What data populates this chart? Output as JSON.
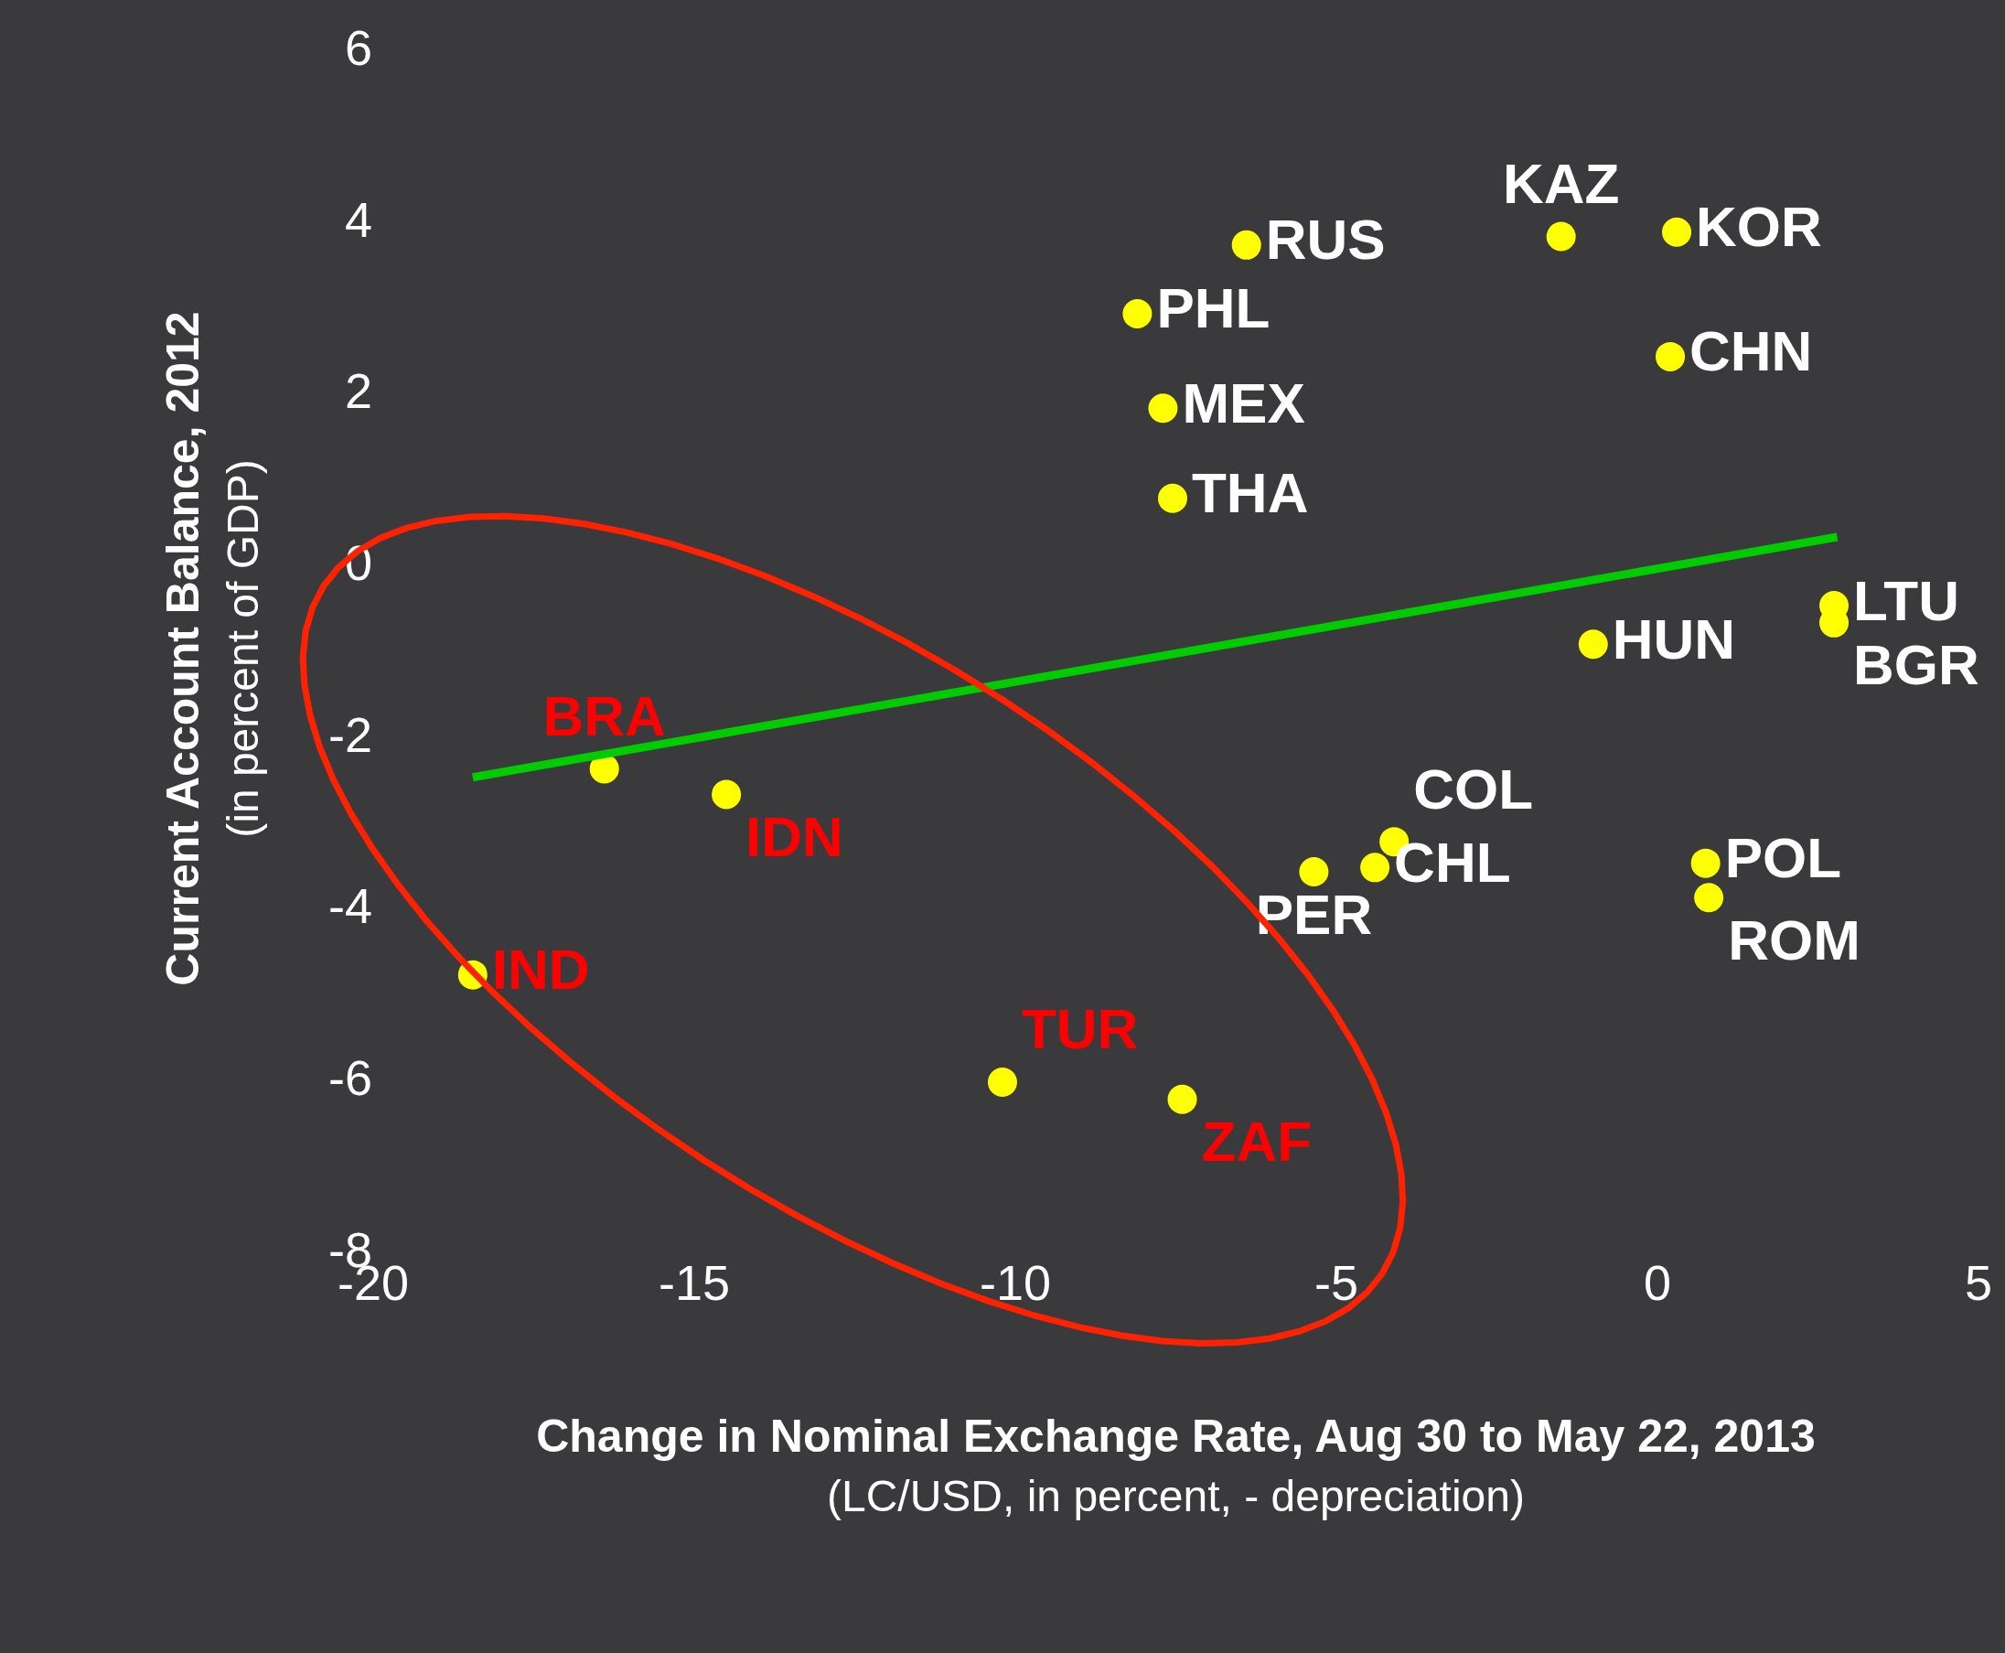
{
  "chart_data": {
    "type": "scatter",
    "xlabel": "Change in Nominal Exchange Rate, Aug 30 to May 22, 2013\n(LC/USD, in percent, - depreciation)",
    "ylabel": "Current Account Balance, 2012\n(in percent of GDP)",
    "xlim": [
      -20,
      5
    ],
    "xticks": [
      -20,
      -15,
      -10,
      -5,
      0,
      5
    ],
    "ylim": [
      -8,
      6
    ],
    "yticks": [
      -8,
      -6,
      -4,
      -2,
      0,
      2,
      4,
      6
    ],
    "legend": false,
    "marker": "circle",
    "series": [
      {
        "name": "RUS",
        "color": "#ffff00",
        "x": [
          -6.4
        ],
        "values": [
          3.7
        ]
      },
      {
        "name": "KAZ",
        "color": "#ffff00",
        "x": [
          -1.5
        ],
        "values": [
          3.8
        ]
      },
      {
        "name": "KOR",
        "color": "#ffff00",
        "x": [
          0.3
        ],
        "values": [
          3.85
        ]
      },
      {
        "name": "PHL",
        "color": "#ffff00",
        "x": [
          -8.1
        ],
        "values": [
          2.9
        ]
      },
      {
        "name": "CHN",
        "color": "#ffff00",
        "x": [
          0.2
        ],
        "values": [
          2.4
        ]
      },
      {
        "name": "MEX",
        "color": "#ffff00",
        "x": [
          -7.7
        ],
        "values": [
          1.8
        ]
      },
      {
        "name": "THA",
        "color": "#ffff00",
        "x": [
          -7.55
        ],
        "values": [
          0.75
        ]
      },
      {
        "name": "LTU",
        "color": "#ffff00",
        "x": [
          2.75
        ],
        "values": [
          -0.5
        ]
      },
      {
        "name": "BGR",
        "color": "#ffff00",
        "x": [
          2.75
        ],
        "values": [
          -0.7
        ]
      },
      {
        "name": "HUN",
        "color": "#ffff00",
        "x": [
          -1.0
        ],
        "values": [
          -0.95
        ]
      },
      {
        "name": "BRA",
        "color": "#ffff00",
        "x": [
          -16.4
        ],
        "values": [
          -2.4
        ]
      },
      {
        "name": "IDN",
        "color": "#ffff00",
        "x": [
          -14.5
        ],
        "values": [
          -2.7
        ]
      },
      {
        "name": "COL",
        "color": "#ffff00",
        "x": [
          -4.1
        ],
        "values": [
          -3.25
        ]
      },
      {
        "name": "CHL",
        "color": "#ffff00",
        "x": [
          -4.4
        ],
        "values": [
          -3.55
        ]
      },
      {
        "name": "PER",
        "color": "#ffff00",
        "x": [
          -5.35
        ],
        "values": [
          -3.6
        ]
      },
      {
        "name": "POL",
        "color": "#ffff00",
        "x": [
          0.75
        ],
        "values": [
          -3.5
        ]
      },
      {
        "name": "ROM",
        "color": "#ffff00",
        "x": [
          0.8
        ],
        "values": [
          -3.9
        ]
      },
      {
        "name": "IND",
        "color": "#ffff00",
        "x": [
          -18.45
        ],
        "values": [
          -4.8
        ]
      },
      {
        "name": "TUR",
        "color": "#ffff00",
        "x": [
          -10.2
        ],
        "values": [
          -6.05
        ]
      },
      {
        "name": "ZAF",
        "color": "#ffff00",
        "x": [
          -7.4
        ],
        "values": [
          -6.25
        ]
      },
      {
        "type": "line",
        "marker": "none",
        "color": "#00cc00",
        "x": [
          -18.45,
          2.8
        ],
        "values": [
          -2.5,
          0.3
        ]
      }
    ]
  }
}
